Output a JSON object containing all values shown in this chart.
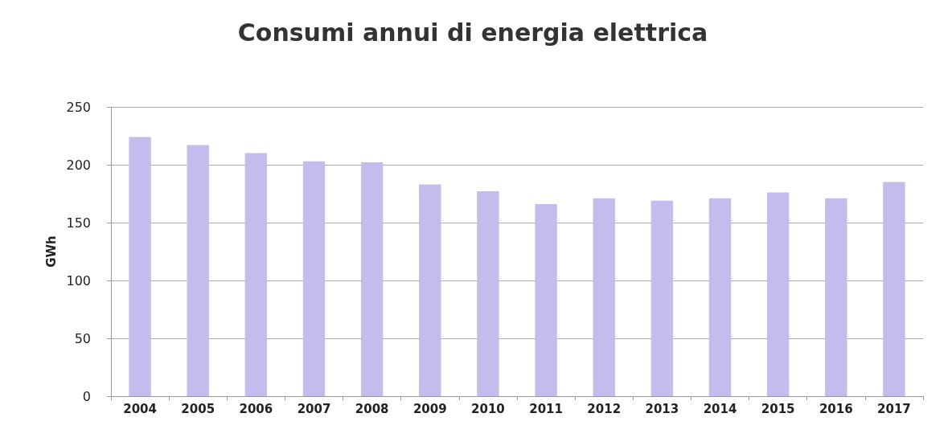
{
  "chart_data": {
    "type": "bar",
    "title": "Consumi annui di energia elettrica",
    "ylabel": "GWh",
    "categories": [
      "2004",
      "2005",
      "2006",
      "2007",
      "2008",
      "2009",
      "2010",
      "2011",
      "2012",
      "2013",
      "2014",
      "2015",
      "2016",
      "2017"
    ],
    "values": [
      224,
      217,
      210,
      203,
      202,
      183,
      177,
      166,
      171,
      169,
      171,
      176,
      171,
      185
    ],
    "color": "#c4bcec",
    "ylim": [
      0,
      250
    ],
    "yticks": [
      0,
      50,
      100,
      150,
      200,
      250
    ],
    "grid": "y"
  }
}
